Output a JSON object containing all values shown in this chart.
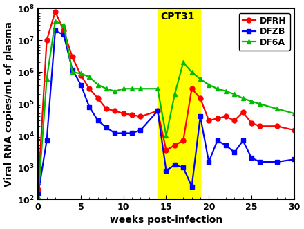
{
  "xlabel": "weeks post-infection",
  "ylabel": "Viral RNA copies/mL of plasma",
  "ylim_log": [
    2,
    8
  ],
  "xlim": [
    0,
    30
  ],
  "xticks": [
    0,
    5,
    10,
    15,
    20,
    25,
    30
  ],
  "cpt31_xmin": 14,
  "cpt31_xmax": 19,
  "cpt31_label": "CPT31",
  "DFRH": {
    "color": "#ff0000",
    "marker": "o",
    "label": "DFRH",
    "x": [
      0,
      1,
      2,
      3,
      4,
      5,
      6,
      7,
      8,
      9,
      10,
      11,
      12,
      14,
      15,
      16,
      17,
      18,
      19,
      20,
      21,
      22,
      23,
      24,
      25,
      26,
      28,
      30
    ],
    "y": [
      200.0,
      10000000.0,
      80000000.0,
      20000000.0,
      3000000.0,
      800000.0,
      300000.0,
      150000.0,
      70000.0,
      60000.0,
      50000.0,
      45000.0,
      40000.0,
      60000.0,
      3500.0,
      5000.0,
      7000.0,
      300000.0,
      150000.0,
      30000.0,
      35000.0,
      40000.0,
      30000.0,
      55000.0,
      25000.0,
      20000.0,
      20000.0,
      15000.0
    ]
  },
  "DFZB": {
    "color": "#0000ff",
    "marker": "s",
    "label": "DFZB",
    "x": [
      0,
      1,
      2,
      3,
      4,
      5,
      6,
      7,
      8,
      9,
      10,
      11,
      12,
      14,
      15,
      16,
      17,
      18,
      19,
      20,
      21,
      22,
      23,
      24,
      25,
      26,
      28,
      30
    ],
    "y": [
      150.0,
      7000.0,
      20000000.0,
      15000000.0,
      1200000.0,
      400000.0,
      80000.0,
      30000.0,
      18000.0,
      12000.0,
      12000.0,
      12000.0,
      15000.0,
      60000.0,
      800.0,
      1200.0,
      1000.0,
      250.0,
      40000.0,
      1500.0,
      7000.0,
      5000.0,
      3000.0,
      7000.0,
      2000.0,
      1500.0,
      1500.0,
      1800.0
    ]
  },
  "DF6A": {
    "color": "#00bb00",
    "marker": "^",
    "label": "DF6A",
    "x": [
      0,
      1,
      2,
      3,
      4,
      5,
      6,
      7,
      8,
      9,
      10,
      11,
      12,
      14,
      15,
      16,
      17,
      18,
      19,
      20,
      21,
      22,
      23,
      24,
      25,
      26,
      28,
      30
    ],
    "y": [
      120.0,
      600000.0,
      40000000.0,
      30000000.0,
      1000000.0,
      900000.0,
      700000.0,
      400000.0,
      300000.0,
      250000.0,
      300000.0,
      300000.0,
      300000.0,
      300000.0,
      10000.0,
      200000.0,
      2000000.0,
      1000000.0,
      600000.0,
      400000.0,
      300000.0,
      250000.0,
      200000.0,
      150000.0,
      120000.0,
      100000.0,
      70000.0,
      50000.0
    ]
  },
  "markersize": 5,
  "linewidth": 1.6,
  "fontsize_label": 10,
  "fontsize_tick": 9,
  "fontsize_legend": 9,
  "fontsize_cpt31": 10
}
